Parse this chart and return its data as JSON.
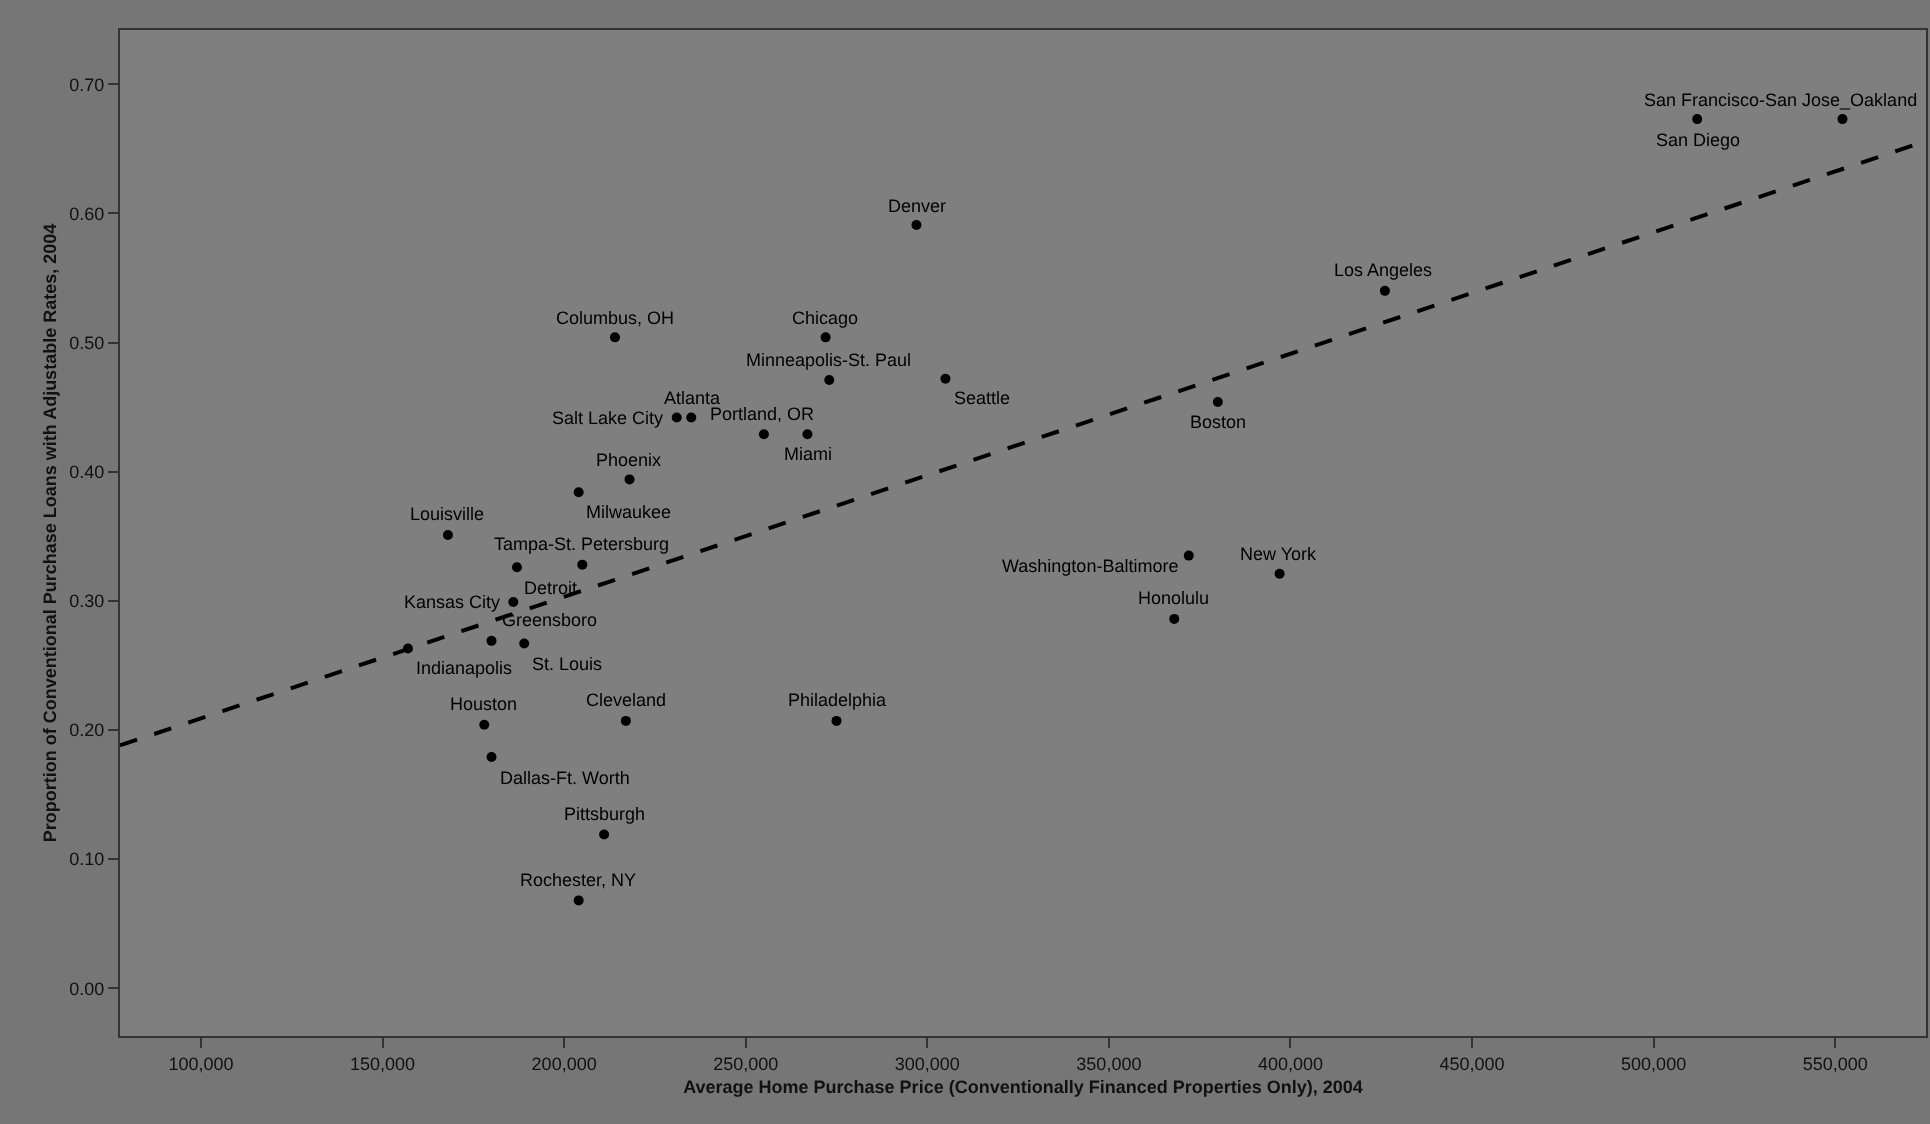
{
  "chart_data": {
    "type": "scatter",
    "xlabel": "Average Home Purchase Price (Conventionally Financed Properties Only), 2004",
    "ylabel": "Proportion of Conventional Purchase Loans with Adjustable Rates, 2004",
    "xlim": [
      77700,
      575000
    ],
    "ylim": [
      -0.037,
      0.742
    ],
    "xticks": [
      {
        "value": 100000,
        "label": "100,000"
      },
      {
        "value": 150000,
        "label": "150,000"
      },
      {
        "value": 200000,
        "label": "200,000"
      },
      {
        "value": 250000,
        "label": "250,000"
      },
      {
        "value": 300000,
        "label": "300,000"
      },
      {
        "value": 350000,
        "label": "350,000"
      },
      {
        "value": 400000,
        "label": "400,000"
      },
      {
        "value": 450000,
        "label": "450,000"
      },
      {
        "value": 500000,
        "label": "500,000"
      },
      {
        "value": 550000,
        "label": "550,000"
      }
    ],
    "yticks": [
      {
        "value": 0,
        "label": "0.00"
      },
      {
        "value": 0.1,
        "label": "0.10"
      },
      {
        "value": 0.2,
        "label": "0.20"
      },
      {
        "value": 0.3,
        "label": "0.30"
      },
      {
        "value": 0.4,
        "label": "0.40"
      },
      {
        "value": 0.5,
        "label": "0.50"
      },
      {
        "value": 0.6,
        "label": "0.60"
      },
      {
        "value": 0.7,
        "label": "0.70"
      }
    ],
    "grid": false,
    "marker": "circle",
    "series": [
      {
        "color": "#000000",
        "x": [
          297000,
          214000,
          272000,
          273000,
          231000,
          235000,
          255000,
          267000,
          218000,
          204000,
          168000,
          305000,
          512000,
          552000,
          426000,
          380000,
          372000,
          397000,
          368000,
          205000,
          187000,
          186000,
          180000,
          189000,
          157000,
          178000,
          180000,
          217000,
          275000,
          211000,
          204000
        ],
        "values": [
          0.591,
          0.504,
          0.504,
          0.471,
          0.442,
          0.442,
          0.429,
          0.429,
          0.394,
          0.384,
          0.351,
          0.472,
          0.673,
          0.673,
          0.54,
          0.454,
          0.335,
          0.321,
          0.286,
          0.328,
          0.326,
          0.299,
          0.269,
          0.267,
          0.263,
          0.204,
          0.179,
          0.207,
          0.207,
          0.119,
          0.068
        ]
      },
      {
        "type": "line",
        "color": "#000000",
        "line_style": "dashed",
        "marker": "none",
        "x": [
          77700,
          575000
        ],
        "values": [
          0.188,
          0.656
        ]
      }
    ],
    "annotations": [
      {
        "text": "Denver",
        "x": 297000,
        "y": 0.591
      },
      {
        "text": "Columbus, OH",
        "x": 214000,
        "y": 0.504
      },
      {
        "text": "Chicago",
        "x": 272000,
        "y": 0.504
      },
      {
        "text": "Minneapolis-St. Paul",
        "x": 273000,
        "y": 0.471
      },
      {
        "text": "Salt Lake City",
        "x": 231000,
        "y": 0.442
      },
      {
        "text": "Atlanta",
        "x": 235000,
        "y": 0.442
      },
      {
        "text": "Portland, OR",
        "x": 255000,
        "y": 0.429
      },
      {
        "text": "Miami",
        "x": 267000,
        "y": 0.429
      },
      {
        "text": "Phoenix",
        "x": 218000,
        "y": 0.394
      },
      {
        "text": "Milwaukee",
        "x": 204000,
        "y": 0.384
      },
      {
        "text": "Louisville",
        "x": 168000,
        "y": 0.351
      },
      {
        "text": "Seattle",
        "x": 305000,
        "y": 0.472
      },
      {
        "text": "San Diego",
        "x": 512000,
        "y": 0.673
      },
      {
        "text": "San Francisco-San Jose_Oakland",
        "x": 552000,
        "y": 0.673
      },
      {
        "text": "Los Angeles",
        "x": 426000,
        "y": 0.54
      },
      {
        "text": "Boston",
        "x": 380000,
        "y": 0.454
      },
      {
        "text": "Washington-Baltimore",
        "x": 372000,
        "y": 0.335
      },
      {
        "text": "New York",
        "x": 397000,
        "y": 0.321
      },
      {
        "text": "Honolulu",
        "x": 368000,
        "y": 0.286
      },
      {
        "text": "Tampa-St. Petersburg",
        "x": 205000,
        "y": 0.328
      },
      {
        "text": "Detroit",
        "x": 187000,
        "y": 0.326
      },
      {
        "text": "Kansas City",
        "x": 186000,
        "y": 0.299
      },
      {
        "text": "Greensboro",
        "x": 180000,
        "y": 0.269
      },
      {
        "text": "St. Louis",
        "x": 189000,
        "y": 0.267
      },
      {
        "text": "Indianapolis",
        "x": 157000,
        "y": 0.263
      },
      {
        "text": "Houston",
        "x": 178000,
        "y": 0.204
      },
      {
        "text": "Dallas-Ft. Worth",
        "x": 180000,
        "y": 0.179
      },
      {
        "text": "Cleveland",
        "x": 217000,
        "y": 0.207
      },
      {
        "text": "Philadelphia",
        "x": 275000,
        "y": 0.207
      },
      {
        "text": "Pittsburgh",
        "x": 211000,
        "y": 0.119
      },
      {
        "text": "Rochester, NY",
        "x": 204000,
        "y": 0.068
      }
    ]
  }
}
